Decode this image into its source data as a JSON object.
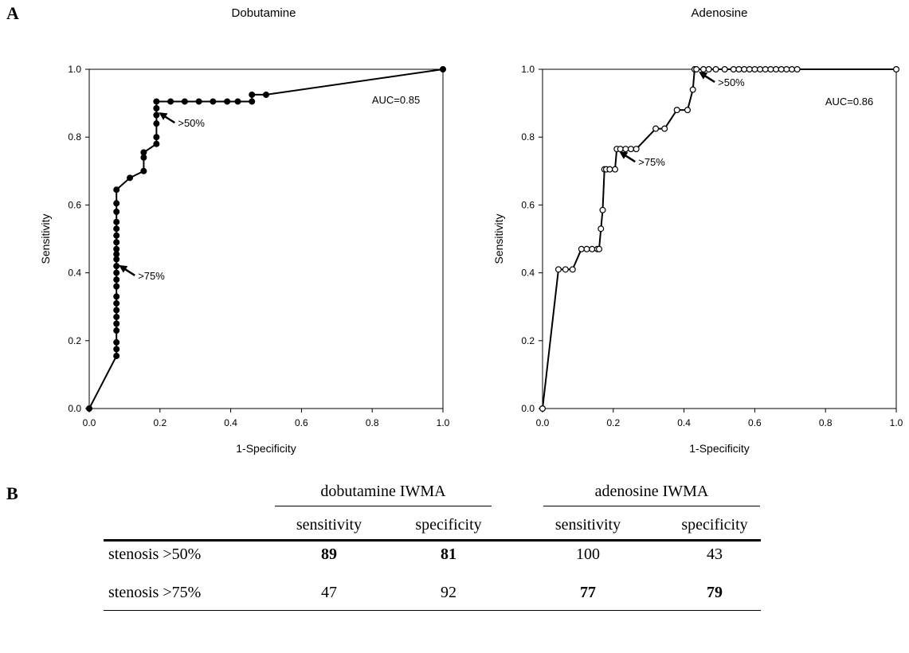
{
  "panels": {
    "a": "A",
    "b": "B"
  },
  "chart_data": [
    {
      "type": "line",
      "title": "Dobutamine",
      "xlabel": "1-Specificity",
      "ylabel": "Sensitivity",
      "xlim": [
        0,
        1
      ],
      "ylim": [
        0,
        1
      ],
      "xticks": [
        "0.0",
        "0.2",
        "0.4",
        "0.6",
        "0.8",
        "1.0"
      ],
      "yticks": [
        "0.0",
        "0.2",
        "0.4",
        "0.6",
        "0.8",
        "1.0"
      ],
      "marker": "filled",
      "annotation": "AUC=0.85",
      "arrows": [
        {
          "label": ">50%",
          "x": 0.19,
          "y": 0.88
        },
        {
          "label": ">75%",
          "x": 0.077,
          "y": 0.43
        }
      ],
      "series": [
        {
          "x": [
            0.0,
            0.077,
            0.077,
            0.077,
            0.077,
            0.077,
            0.077,
            0.077,
            0.077,
            0.077,
            0.077,
            0.077,
            0.077,
            0.077,
            0.077,
            0.077,
            0.077,
            0.077,
            0.077,
            0.077,
            0.077,
            0.077,
            0.077,
            0.077,
            0.115,
            0.154,
            0.154,
            0.154,
            0.19,
            0.19,
            0.19,
            0.19,
            0.19,
            0.19,
            0.23,
            0.27,
            0.31,
            0.35,
            0.39,
            0.42,
            0.46,
            0.46,
            0.5,
            1.0
          ],
          "y": [
            0.0,
            0.155,
            0.175,
            0.195,
            0.23,
            0.25,
            0.27,
            0.29,
            0.31,
            0.33,
            0.36,
            0.38,
            0.4,
            0.42,
            0.44,
            0.455,
            0.47,
            0.49,
            0.51,
            0.53,
            0.55,
            0.58,
            0.605,
            0.645,
            0.68,
            0.7,
            0.74,
            0.755,
            0.78,
            0.8,
            0.84,
            0.865,
            0.885,
            0.905,
            0.905,
            0.905,
            0.905,
            0.905,
            0.905,
            0.905,
            0.905,
            0.925,
            0.925,
            1.0
          ]
        }
      ]
    },
    {
      "type": "line",
      "title": "Adenosine",
      "xlabel": "1-Specificity",
      "ylabel": "Sensitivity",
      "xlim": [
        0,
        1
      ],
      "ylim": [
        0,
        1
      ],
      "xticks": [
        "0.0",
        "0.2",
        "0.4",
        "0.6",
        "0.8",
        "1.0"
      ],
      "yticks": [
        "0.0",
        "0.2",
        "0.4",
        "0.6",
        "0.8",
        "1.0"
      ],
      "marker": "open",
      "annotation": "AUC=0.86",
      "arrows": [
        {
          "label": ">50%",
          "x": 0.435,
          "y": 1.0
        },
        {
          "label": ">75%",
          "x": 0.21,
          "y": 0.765
        }
      ],
      "series": [
        {
          "x": [
            0.0,
            0.045,
            0.065,
            0.085,
            0.11,
            0.125,
            0.14,
            0.155,
            0.16,
            0.165,
            0.17,
            0.175,
            0.18,
            0.19,
            0.205,
            0.21,
            0.22,
            0.235,
            0.25,
            0.265,
            0.32,
            0.345,
            0.38,
            0.41,
            0.425,
            0.43,
            0.435,
            0.455,
            0.47,
            0.49,
            0.515,
            0.54,
            0.555,
            0.57,
            0.585,
            0.6,
            0.615,
            0.63,
            0.645,
            0.66,
            0.675,
            0.69,
            0.705,
            0.72,
            1.0
          ],
          "y": [
            0.0,
            0.41,
            0.41,
            0.41,
            0.47,
            0.47,
            0.47,
            0.47,
            0.47,
            0.53,
            0.585,
            0.705,
            0.705,
            0.705,
            0.705,
            0.765,
            0.765,
            0.765,
            0.765,
            0.765,
            0.825,
            0.825,
            0.88,
            0.88,
            0.94,
            1.0,
            1.0,
            1.0,
            1.0,
            1.0,
            1.0,
            1.0,
            1.0,
            1.0,
            1.0,
            1.0,
            1.0,
            1.0,
            1.0,
            1.0,
            1.0,
            1.0,
            1.0,
            1.0,
            1.0
          ]
        }
      ]
    }
  ],
  "table": {
    "groups": [
      "dobutamine IWMA",
      "adenosine IWMA"
    ],
    "columns": [
      "sensitivity",
      "specificity",
      "sensitivity",
      "specificity"
    ],
    "rows": [
      {
        "label": "stenosis >50%",
        "values": [
          "89",
          "81",
          "100",
          "43"
        ],
        "bold": [
          true,
          true,
          false,
          false
        ]
      },
      {
        "label": "stenosis >75%",
        "values": [
          "47",
          "92",
          "77",
          "79"
        ],
        "bold": [
          false,
          false,
          true,
          true
        ]
      }
    ]
  }
}
